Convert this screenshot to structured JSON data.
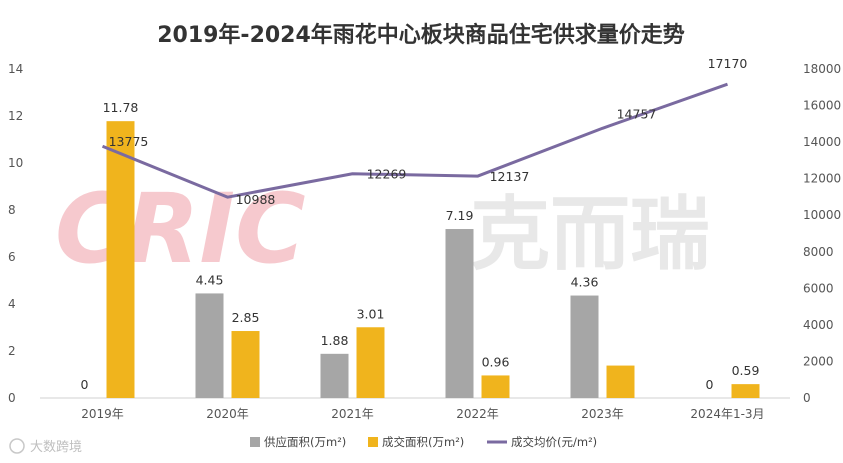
{
  "chart_data": {
    "type": "bar",
    "title": "2019年-2024年雨花中心板块商品住宅供求量价走势",
    "categories": [
      "2019年",
      "2020年",
      "2021年",
      "2022年",
      "2023年",
      "2024年1-3月"
    ],
    "series": [
      {
        "name": "供应面积(万m²)",
        "kind": "bar",
        "axis": "left",
        "color": "#a6a6a6",
        "values": [
          0,
          4.45,
          1.88,
          7.19,
          4.36,
          0
        ],
        "labels": [
          "0",
          "4.45",
          "1.88",
          "7.19",
          "4.36",
          "0"
        ]
      },
      {
        "name": "成交面积(万m²)",
        "kind": "bar",
        "axis": "left",
        "color": "#f0b41d",
        "values": [
          11.78,
          2.85,
          3.01,
          0.96,
          1.38,
          0.59
        ],
        "labels": [
          "11.78",
          "2.85",
          "3.01",
          "0.96",
          "",
          "0.59"
        ]
      },
      {
        "name": "成交均价(元/m²)",
        "kind": "line",
        "axis": "right",
        "color": "#7a6aa0",
        "values": [
          13775,
          10988,
          12269,
          12137,
          14757,
          17170
        ],
        "labels": [
          "13775",
          "10988",
          "12269",
          "12137",
          "14757",
          "17170"
        ]
      }
    ],
    "y_left": {
      "min": 0,
      "max": 14,
      "step": 2
    },
    "y_right": {
      "min": 0,
      "max": 18000,
      "step": 2000
    },
    "legend_position": "bottom",
    "grid": false
  },
  "watermark": {
    "latin": "CRIC",
    "cn": "克而瑞",
    "colors": {
      "latin": "#f6c9ce",
      "cn": "#e8e8e8"
    }
  },
  "badge": {
    "text": "大数跨境"
  }
}
